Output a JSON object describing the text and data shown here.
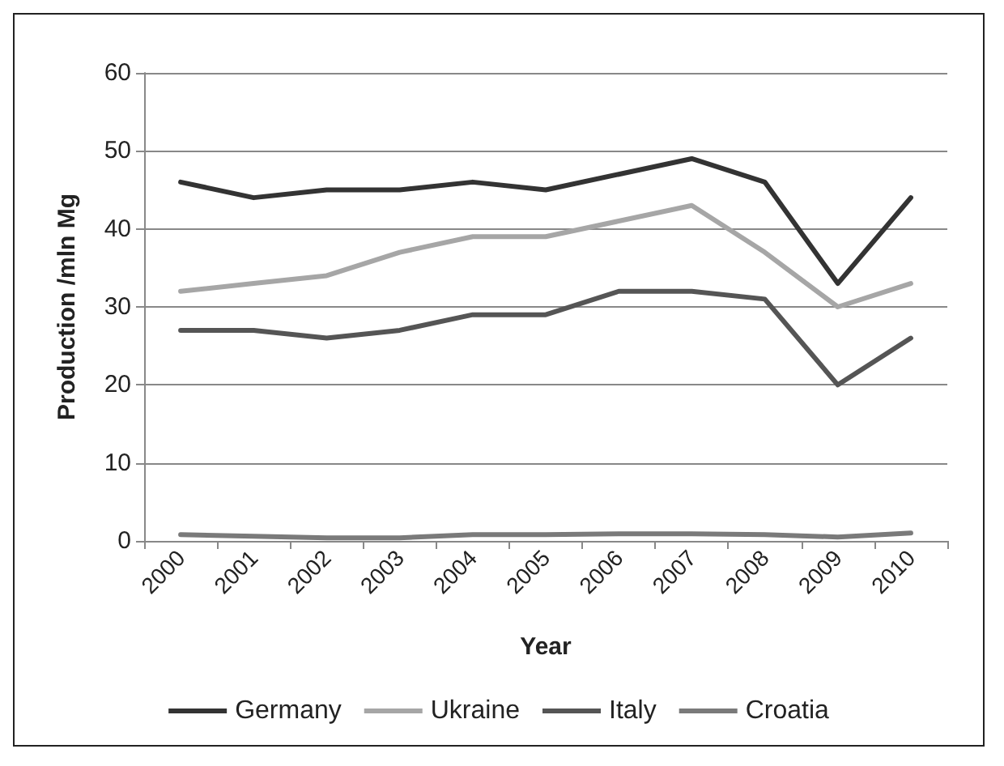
{
  "chart_data": {
    "type": "line",
    "xlabel": "Year",
    "ylabel": "Production /mln Mg",
    "categories": [
      "2000",
      "2001",
      "2002",
      "2003",
      "2004",
      "2005",
      "2006",
      "2007",
      "2008",
      "2009",
      "2010"
    ],
    "series": [
      {
        "name": "Germany",
        "color": "#333333",
        "values": [
          46,
          44,
          45,
          45,
          46,
          45,
          47,
          49,
          46,
          33,
          44
        ]
      },
      {
        "name": "Ukraine",
        "color": "#a6a6a6",
        "values": [
          32,
          33,
          34,
          37,
          39,
          39,
          41,
          43,
          37,
          30,
          33
        ]
      },
      {
        "name": "Italy",
        "color": "#555555",
        "values": [
          27,
          27,
          26,
          27,
          29,
          29,
          32,
          32,
          31,
          20,
          26
        ]
      },
      {
        "name": "Croatia",
        "color": "#7a7a7a",
        "values": [
          0.8,
          0.6,
          0.4,
          0.4,
          0.8,
          0.8,
          0.9,
          0.9,
          0.8,
          0.5,
          1
        ]
      }
    ],
    "ylim": [
      0,
      60
    ],
    "yticks": [
      0,
      10,
      20,
      30,
      40,
      50,
      60
    ],
    "grid": "y",
    "legend": "bottom",
    "marker": "none",
    "line_style": "solid"
  }
}
